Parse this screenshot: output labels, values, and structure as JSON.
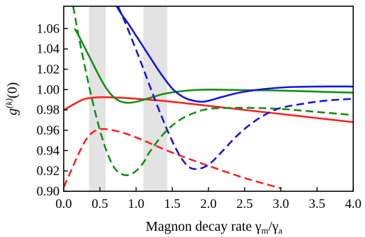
{
  "chart_data": {
    "type": "line",
    "title": "",
    "xlabel": "Magnon decay rate γm/γa",
    "xlabel_parts": {
      "main": "Magnon decay rate γ",
      "sub1": "m",
      "slash": "/γ",
      "sub2": "a"
    },
    "ylabel": "g(k)(0)",
    "ylabel_parts": {
      "g": "g",
      "sup": "(k)",
      "arg": "(0)"
    },
    "xlim": [
      0.0,
      4.0
    ],
    "ylim": [
      0.9,
      1.082
    ],
    "x_ticks": [
      "0.0",
      "0.5",
      "1.0",
      "1.5",
      "2.0",
      "2.5",
      "3.0",
      "3.5",
      "4.0"
    ],
    "x_tick_values": [
      0.0,
      0.5,
      1.0,
      1.5,
      2.0,
      2.5,
      3.0,
      3.5,
      4.0
    ],
    "y_ticks": [
      "0.90",
      "0.92",
      "0.94",
      "0.96",
      "0.98",
      "1.00",
      "1.02",
      "1.04",
      "1.06"
    ],
    "y_tick_values": [
      0.9,
      0.92,
      0.94,
      0.96,
      0.98,
      1.0,
      1.02,
      1.04,
      1.06
    ],
    "grid": false,
    "legend": "none",
    "shaded_regions": [
      {
        "x_start": 0.35,
        "x_end": 0.58,
        "color": "#e3e3e3"
      },
      {
        "x_start": 1.1,
        "x_end": 1.43,
        "color": "#e3e3e3"
      }
    ],
    "series": [
      {
        "color": "#ff2020",
        "dash": "solid",
        "x": [
          0.0,
          0.1,
          0.2,
          0.3,
          0.4,
          0.5,
          0.6,
          0.8,
          1.0,
          1.2,
          1.5,
          2.0,
          2.5,
          3.0,
          3.5,
          4.0
        ],
        "y": [
          0.98,
          0.984,
          0.988,
          0.991,
          0.992,
          0.9925,
          0.9925,
          0.992,
          0.991,
          0.99,
          0.988,
          0.984,
          0.98,
          0.976,
          0.972,
          0.968
        ]
      },
      {
        "color": "#ff2020",
        "dash": "dashed",
        "x": [
          0.0,
          0.1,
          0.2,
          0.3,
          0.4,
          0.5,
          0.6,
          0.8,
          1.0,
          1.2,
          1.5,
          2.0,
          2.5,
          3.0
        ],
        "y": [
          0.904,
          0.92,
          0.936,
          0.95,
          0.958,
          0.961,
          0.961,
          0.958,
          0.953,
          0.947,
          0.938,
          0.925,
          0.913,
          0.903
        ]
      },
      {
        "color": "#119011",
        "dash": "solid",
        "x": [
          0.15,
          0.2,
          0.3,
          0.4,
          0.5,
          0.6,
          0.7,
          0.8,
          0.9,
          1.0,
          1.2,
          1.4,
          1.7,
          2.0,
          2.5,
          3.0,
          3.5,
          4.0
        ],
        "y": [
          1.06,
          1.054,
          1.04,
          1.026,
          1.012,
          1.0,
          0.992,
          0.988,
          0.987,
          0.988,
          0.992,
          0.996,
          0.999,
          1.0,
          0.9995,
          0.999,
          0.998,
          0.997
        ]
      },
      {
        "color": "#119011",
        "dash": "dashed",
        "x": [
          0.13,
          0.2,
          0.3,
          0.4,
          0.5,
          0.6,
          0.7,
          0.8,
          0.9,
          1.0,
          1.1,
          1.2,
          1.4,
          1.6,
          1.8,
          2.0,
          2.3,
          2.6,
          3.0,
          3.5,
          4.0
        ],
        "y": [
          1.082,
          1.055,
          1.02,
          0.988,
          0.96,
          0.938,
          0.923,
          0.917,
          0.916,
          0.92,
          0.928,
          0.94,
          0.958,
          0.97,
          0.977,
          0.981,
          0.982,
          0.982,
          0.981,
          0.978,
          0.975
        ]
      },
      {
        "color": "#1515dd",
        "dash": "solid",
        "x": [
          0.73,
          0.8,
          0.9,
          1.0,
          1.1,
          1.2,
          1.3,
          1.4,
          1.5,
          1.6,
          1.7,
          1.8,
          1.9,
          2.0,
          2.2,
          2.5,
          3.0,
          3.5,
          4.0
        ],
        "y": [
          1.082,
          1.074,
          1.064,
          1.053,
          1.042,
          1.031,
          1.02,
          1.01,
          1.001,
          0.995,
          0.991,
          0.989,
          0.988,
          0.989,
          0.993,
          0.998,
          1.002,
          1.003,
          1.003
        ]
      },
      {
        "color": "#1515dd",
        "dash": "dashed",
        "x": [
          0.75,
          0.85,
          0.95,
          1.05,
          1.15,
          1.25,
          1.35,
          1.45,
          1.55,
          1.65,
          1.75,
          1.85,
          1.95,
          2.05,
          2.2,
          2.4,
          2.6,
          2.8,
          3.0,
          3.3,
          3.6,
          4.0
        ],
        "y": [
          1.082,
          1.066,
          1.048,
          1.03,
          1.011,
          0.992,
          0.974,
          0.957,
          0.942,
          0.93,
          0.923,
          0.922,
          0.924,
          0.929,
          0.94,
          0.955,
          0.967,
          0.976,
          0.982,
          0.986,
          0.989,
          0.991
        ]
      }
    ]
  }
}
